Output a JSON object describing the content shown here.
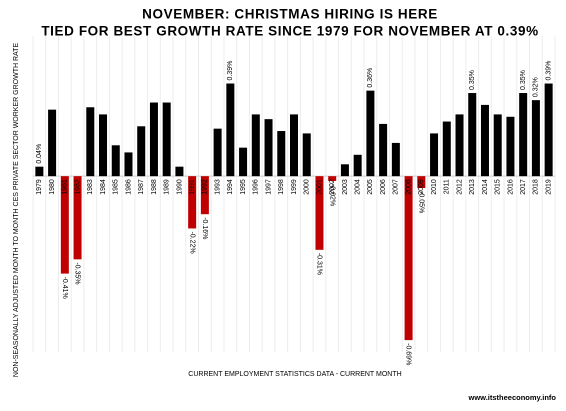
{
  "chart_data": {
    "type": "bar",
    "title": "NOVEMBER: CHRISTMAS HIRING IS HERE",
    "subtitle": "TIED FOR BEST GROWTH RATE SINCE 1979 FOR NOVEMBER AT 0.39%",
    "y_label": "NON-SEASONALLY ADJUSTED MONTH TO MONTH CES PRIVATE SECTOR WORKER GROWTH RATE",
    "x_label": "CURRENT EMPLOYMENT STATISTICS DATA - CURRENT MONTH",
    "source": "www.itstheeconomy.info",
    "categories": [
      "1979",
      "1980",
      "1981",
      "1982",
      "1983",
      "1984",
      "1985",
      "1986",
      "1987",
      "1988",
      "1989",
      "1990",
      "1991",
      "1992",
      "1993",
      "1994",
      "1995",
      "1996",
      "1997",
      "1998",
      "1999",
      "2000",
      "2001",
      "2002",
      "2003",
      "2004",
      "2005",
      "2006",
      "2007",
      "2008",
      "2009",
      "2010",
      "2011",
      "2012",
      "2013",
      "2014",
      "2015",
      "2016",
      "2017",
      "2018",
      "2019"
    ],
    "values": [
      0.04,
      0.28,
      -0.41,
      -0.35,
      0.29,
      0.26,
      0.13,
      0.1,
      0.21,
      0.31,
      0.31,
      0.04,
      -0.22,
      -0.16,
      0.2,
      0.39,
      0.12,
      0.26,
      0.24,
      0.19,
      0.26,
      0.18,
      -0.31,
      -0.02,
      0.05,
      0.09,
      0.36,
      0.22,
      0.14,
      -0.69,
      -0.05,
      0.18,
      0.23,
      0.26,
      0.35,
      0.3,
      0.26,
      0.25,
      0.35,
      0.32,
      0.39
    ],
    "value_labels": [
      "0.04%",
      null,
      "-0.41%",
      "-0.35%",
      null,
      null,
      null,
      null,
      null,
      null,
      null,
      null,
      "-0.22%",
      "-0.16%",
      null,
      "0.39%",
      null,
      null,
      null,
      null,
      null,
      null,
      "-0.31%",
      "-0.02%",
      null,
      null,
      "0.36%",
      null,
      null,
      "-0.69%",
      "-0.05%",
      null,
      null,
      null,
      "0.35%",
      null,
      null,
      null,
      "0.35%",
      "0.32%",
      "0.39%"
    ],
    "color": "#000000",
    "negative_color": "#c00000",
    "ylim": [
      -0.74,
      0.59
    ]
  }
}
